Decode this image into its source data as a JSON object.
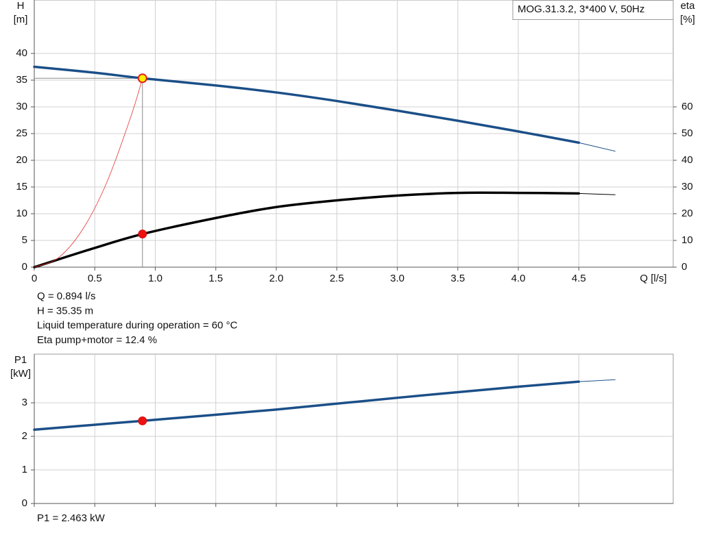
{
  "chart_data": [
    {
      "type": "line",
      "annotation": "MOG.31.3.2, 3*400 V, 50Hz",
      "ylabel": "H",
      "yunit": "[m]",
      "y2label": "eta",
      "y2unit": "[%]",
      "xlabel": "Q [l/s]",
      "xlim": [
        0,
        5.28
      ],
      "ylim": [
        0,
        50
      ],
      "y2lim": [
        0,
        100
      ],
      "xticks": [
        0,
        0.5,
        {
          "value": 1,
          "label": "1.0"
        },
        1.5,
        {
          "value": 2,
          "label": "2.0"
        },
        2.5,
        {
          "value": 3,
          "label": "3.0"
        },
        3.5,
        {
          "value": 4,
          "label": "4.0"
        },
        4.5
      ],
      "yticks": [
        0,
        5,
        10,
        15,
        20,
        25,
        30,
        35,
        40
      ],
      "y2ticks": [
        0,
        10,
        20,
        30,
        40,
        50,
        60
      ],
      "grid": true,
      "series": [
        {
          "color": "#1b4f88",
          "width": 3.5,
          "x": [
            0,
            0.5,
            0.894,
            1.5,
            2,
            2.5,
            3,
            3.5,
            4,
            4.5
          ],
          "values": [
            37.5,
            36.4,
            35.35,
            34,
            32.7,
            31.1,
            29.3,
            27.4,
            25.4,
            23.3
          ]
        },
        {
          "color": "#1b4f88",
          "width": 1,
          "x": [
            4.5,
            4.8
          ],
          "values": [
            23.3,
            21.7
          ]
        },
        {
          "color": "#000000",
          "width": 3.5,
          "axis": "y2",
          "x": [
            0,
            0.5,
            0.894,
            1.5,
            2,
            2.5,
            3,
            3.5,
            4,
            4.5
          ],
          "values": [
            0,
            7.2,
            12.4,
            18.4,
            22.5,
            25,
            26.8,
            27.8,
            27.8,
            27.6
          ]
        },
        {
          "color": "#000000",
          "width": 1,
          "axis": "y2",
          "x": [
            4.5,
            4.8
          ],
          "values": [
            27.6,
            27.1
          ]
        },
        {
          "color": "#e83030",
          "width": 0.8,
          "x": [
            0,
            0.2,
            0.4,
            0.6,
            0.8,
            0.894
          ],
          "values": [
            0,
            1.77,
            7.08,
            15.9,
            28.3,
            35.35
          ]
        }
      ],
      "points": [
        {
          "x": 0.894,
          "y": 35.35,
          "color": "#ffee00",
          "edge": "#e02020",
          "guide": true
        },
        {
          "x": 0.894,
          "y": 12.4,
          "axis": "y2",
          "color": "#ee1111"
        }
      ],
      "notes": [
        "Q = 0.894 l/s",
        "H = 35.35 m",
        "Liquid temperature during operation = 60 °C",
        "Eta pump+motor = 12.4 %"
      ]
    },
    {
      "type": "line",
      "ylabel": "P1",
      "yunit": "[kW]",
      "xlim": [
        0,
        5.28
      ],
      "ylim": [
        0,
        4.45
      ],
      "xticks": [
        0,
        0.5,
        1,
        1.5,
        2,
        2.5,
        3,
        3.5,
        4,
        4.5
      ],
      "xtick_labels": false,
      "yticks": [
        0,
        1,
        2,
        3
      ],
      "grid": true,
      "series": [
        {
          "color": "#1b4f88",
          "width": 3.5,
          "x": [
            0,
            0.894,
            2,
            3,
            4,
            4.5
          ],
          "values": [
            2.2,
            2.463,
            2.8,
            3.15,
            3.48,
            3.63
          ]
        },
        {
          "color": "#1b4f88",
          "width": 1,
          "x": [
            4.5,
            4.8
          ],
          "values": [
            3.63,
            3.69
          ]
        }
      ],
      "points": [
        {
          "x": 0.894,
          "y": 2.463,
          "color": "#ee1111"
        }
      ],
      "notes": [
        "P1 = 2.463 kW"
      ]
    }
  ]
}
